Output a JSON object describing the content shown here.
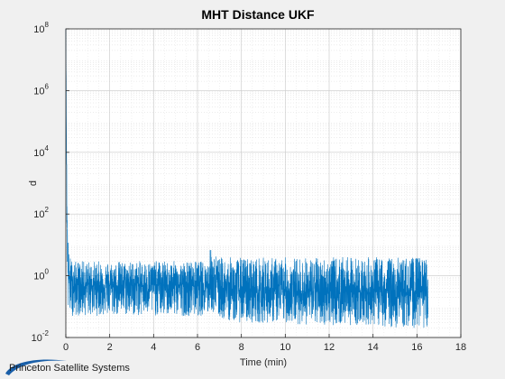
{
  "chart_data": {
    "type": "line",
    "title": "MHT Distance UKF",
    "xlabel": "Time (min)",
    "ylabel": "d",
    "xlim": [
      0,
      18
    ],
    "ylim": [
      0.01,
      100000000
    ],
    "yscale": "log",
    "grid": true,
    "minor_grid": true,
    "xticks": [
      0,
      2,
      4,
      6,
      8,
      10,
      12,
      14,
      16,
      18
    ],
    "yticks": [
      {
        "base": "10",
        "exp": "-2"
      },
      {
        "base": "10",
        "exp": "0"
      },
      {
        "base": "10",
        "exp": "2"
      },
      {
        "base": "10",
        "exp": "4"
      },
      {
        "base": "10",
        "exp": "6"
      },
      {
        "base": "10",
        "exp": "8"
      }
    ],
    "series": [
      {
        "color": "#0072bd",
        "x_range": [
          0,
          16.5
        ],
        "initial_spike_peak": 100000000,
        "x": [
          0,
          0.05,
          0.1,
          0.15,
          0.3,
          1,
          2,
          3,
          4,
          5,
          6,
          6.5,
          6.6,
          6.7,
          7,
          8,
          9,
          10,
          11,
          12,
          13,
          14,
          15,
          16,
          16.5
        ],
        "y_upper": [
          100000000,
          1000,
          20,
          5,
          3,
          3,
          3,
          3,
          3,
          3,
          3,
          3,
          10,
          6,
          4,
          4,
          4,
          4,
          4,
          4,
          4,
          4,
          4,
          4,
          4
        ],
        "y_typical": [
          100000000,
          100,
          2,
          0.8,
          0.5,
          0.5,
          0.5,
          0.5,
          0.5,
          0.5,
          0.5,
          0.5,
          1,
          0.6,
          0.4,
          0.3,
          0.3,
          0.3,
          0.3,
          0.3,
          0.3,
          0.3,
          0.3,
          0.3,
          0.3
        ],
        "y_lower": [
          100000000,
          10,
          0.05,
          0.05,
          0.05,
          0.05,
          0.05,
          0.05,
          0.05,
          0.05,
          0.05,
          0.05,
          0.08,
          0.06,
          0.04,
          0.03,
          0.03,
          0.03,
          0.025,
          0.025,
          0.025,
          0.025,
          0.02,
          0.02,
          0.02
        ]
      }
    ]
  },
  "footer": {
    "logo_text": "Princeton Satellite Systems",
    "logo_color": "#1a5fa8"
  }
}
